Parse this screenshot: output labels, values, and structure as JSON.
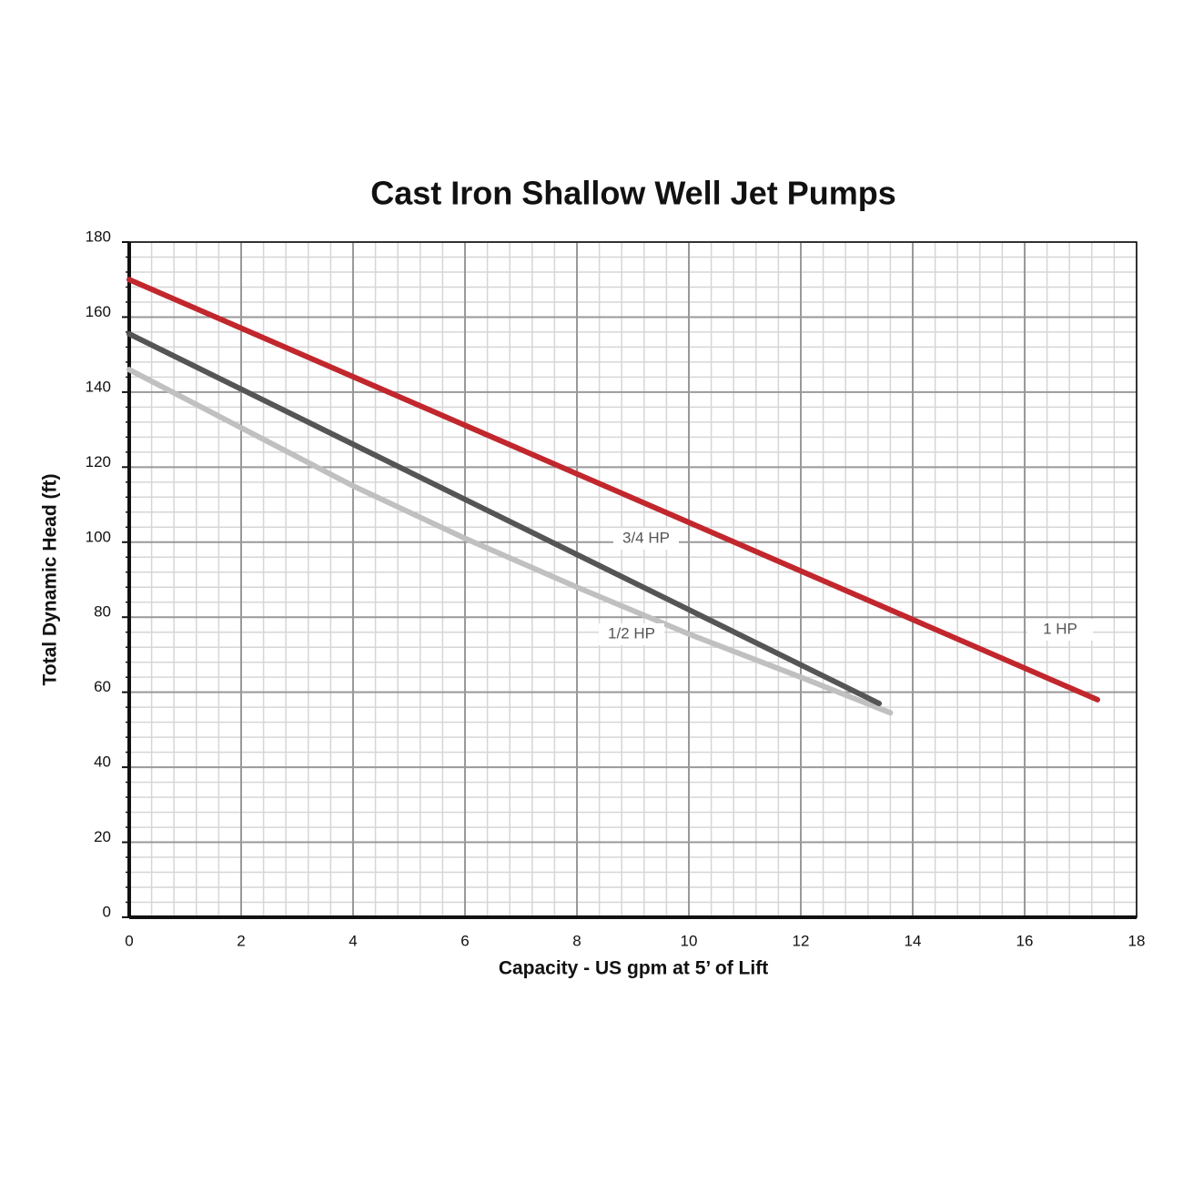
{
  "chart_data": {
    "type": "line",
    "title": "Cast Iron Shallow Well Jet Pumps",
    "x_label": "Capacity - US gpm at 5’ of Lift",
    "y_label": "Total Dynamic Head (ft)",
    "xlim": [
      0,
      18
    ],
    "xticks": [
      0,
      2,
      4,
      6,
      8,
      10,
      12,
      14,
      16,
      18
    ],
    "ylim": [
      0,
      180
    ],
    "yticks": [
      0,
      20,
      40,
      60,
      80,
      100,
      120,
      140,
      160,
      180
    ],
    "grid": true,
    "series": [
      {
        "name": "1/2 HP",
        "color": "#c0c0c0",
        "x": [
          0,
          2,
          4,
          6,
          8,
          10,
          12,
          13.6
        ],
        "values": [
          146,
          130.5,
          115,
          101,
          88,
          75.5,
          64,
          54.5
        ]
      },
      {
        "name": "3/4 HP",
        "color": "#555555",
        "x": [
          0,
          13.4
        ],
        "values": [
          155.5,
          57
        ]
      },
      {
        "name": "1 HP",
        "color": "#c1272d",
        "x": [
          0,
          17.3
        ],
        "values": [
          170,
          58
        ]
      }
    ]
  }
}
